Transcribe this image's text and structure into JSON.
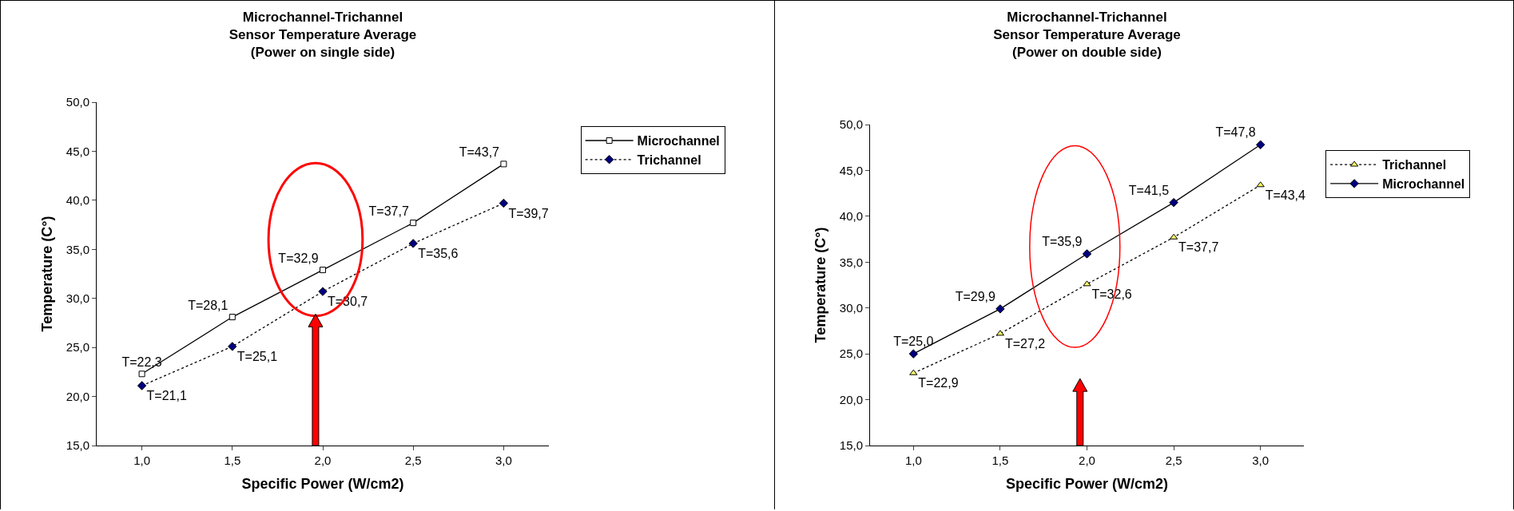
{
  "chart_data": [
    {
      "type": "line",
      "title": "Microchannel-Trichannel\nSensor Temperature Average\n(Power on single side)",
      "xlabel": "Specific Power (W/cm2)",
      "ylabel": "Temperature (C°)",
      "x": [
        1,
        1.5,
        2,
        2.5,
        3
      ],
      "xlim": [
        0.75,
        3.25
      ],
      "xticks": [
        {
          "value": 1,
          "label": "1,0"
        },
        {
          "value": 1.5,
          "label": "1,5"
        },
        {
          "value": 2,
          "label": "2,0"
        },
        {
          "value": 2.5,
          "label": "2,5"
        },
        {
          "value": 3,
          "label": "3,0"
        }
      ],
      "ylim": [
        15,
        50
      ],
      "yticks": [
        {
          "value": 15,
          "label": "15,0"
        },
        {
          "value": 20,
          "label": "20,0"
        },
        {
          "value": 25,
          "label": "25,0"
        },
        {
          "value": 30,
          "label": "30,0"
        },
        {
          "value": 35,
          "label": "35,0"
        },
        {
          "value": 40,
          "label": "40,0"
        },
        {
          "value": 45,
          "label": "45,0"
        },
        {
          "value": 50,
          "label": "50,0"
        }
      ],
      "grid": false,
      "legend": "right",
      "series": [
        {
          "name": "Microchannel",
          "color": "#ffffff",
          "marker": "square",
          "line_style": "solid",
          "values": [
            22.3,
            28.1,
            32.9,
            37.7,
            43.7
          ],
          "value_labels": [
            "T=22,3",
            "T=28,1",
            "T=32,9",
            "T=37,7",
            "T=43,7"
          ]
        },
        {
          "name": "Trichannel",
          "color": "#000080",
          "marker": "diamond",
          "line_style": "dotted",
          "values": [
            21.1,
            25.1,
            30.7,
            35.6,
            39.7
          ],
          "value_labels": [
            "T=21,1",
            "T=25,1",
            "T=30,7",
            "T=35,6",
            "T=39,7"
          ]
        }
      ]
    },
    {
      "type": "line",
      "title": "Microchannel-Trichannel\nSensor Temperature Average\n(Power on double side)",
      "xlabel": "Specific Power (W/cm2)",
      "ylabel": "Temperature (C°)",
      "x": [
        1,
        1.5,
        2,
        2.5,
        3
      ],
      "xlim": [
        0.75,
        3.25
      ],
      "xticks": [
        {
          "value": 1,
          "label": "1,0"
        },
        {
          "value": 1.5,
          "label": "1,5"
        },
        {
          "value": 2,
          "label": "2,0"
        },
        {
          "value": 2.5,
          "label": "2,5"
        },
        {
          "value": 3,
          "label": "3,0"
        }
      ],
      "ylim": [
        15,
        50
      ],
      "yticks": [
        {
          "value": 15,
          "label": "15,0"
        },
        {
          "value": 20,
          "label": "20,0"
        },
        {
          "value": 25,
          "label": "25,0"
        },
        {
          "value": 30,
          "label": "30,0"
        },
        {
          "value": 35,
          "label": "35,0"
        },
        {
          "value": 40,
          "label": "40,0"
        },
        {
          "value": 45,
          "label": "45,0"
        },
        {
          "value": 50,
          "label": "50,0"
        }
      ],
      "grid": false,
      "legend": "right",
      "series": [
        {
          "name": "Trichannel",
          "color": "#ffff66",
          "marker": "triangle",
          "line_style": "dotted",
          "values": [
            22.9,
            27.2,
            32.6,
            37.7,
            43.4
          ],
          "value_labels": [
            "T=22,9",
            "T=27,2",
            "T=32,6",
            "T=37,7",
            "T=43,4"
          ]
        },
        {
          "name": "Microchannel",
          "color": "#000080",
          "marker": "diamond",
          "line_style": "solid",
          "values": [
            25.0,
            29.9,
            35.9,
            41.5,
            47.8
          ],
          "value_labels": [
            "T=25,0",
            "T=29,9",
            "T=35,9",
            "T=41,5",
            "T=47,8"
          ]
        }
      ]
    }
  ]
}
